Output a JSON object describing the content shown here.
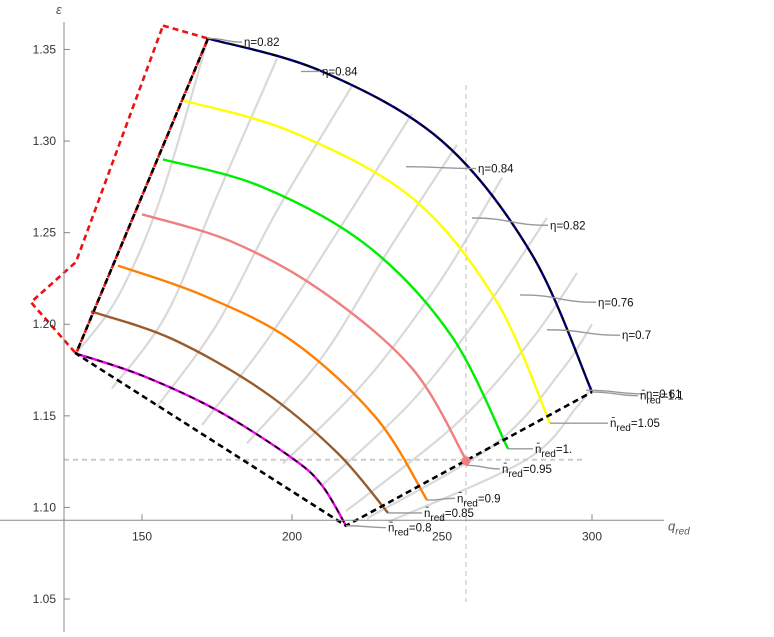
{
  "chart_data": {
    "type": "line",
    "title": "",
    "xlabel": "q_red",
    "ylabel": "ε",
    "xlim": [
      124,
      322
    ],
    "ylim": [
      1.032,
      1.377
    ],
    "grid": false,
    "x_ticks": [
      150,
      200,
      250,
      300
    ],
    "y_ticks": [
      1.05,
      1.1,
      1.15,
      1.2,
      1.25,
      1.3,
      1.35
    ],
    "x_tick_labels": [
      "150",
      "200",
      "250",
      "300"
    ],
    "y_tick_labels": [
      "1.05",
      "1.10",
      "1.15",
      "1.20",
      "1.25",
      "1.30",
      "1.35"
    ],
    "reference_lines": {
      "x": 258,
      "y": 1.126
    },
    "operating_point": {
      "x": 258,
      "y": 1.126,
      "color": "#f08080"
    },
    "speed_lines": [
      {
        "label": "n̄red=0.8",
        "color": "#ee00ee",
        "points": [
          [
            128,
            1.184
          ],
          [
            150,
            1.172
          ],
          [
            175,
            1.153
          ],
          [
            200,
            1.127
          ],
          [
            210,
            1.112
          ],
          [
            218,
            1.09
          ]
        ]
      },
      {
        "label": "n̄red=0.85",
        "color": "#9a5b2a",
        "points": [
          [
            133,
            1.207
          ],
          [
            160,
            1.192
          ],
          [
            190,
            1.164
          ],
          [
            215,
            1.13
          ],
          [
            232,
            1.097
          ]
        ]
      },
      {
        "label": "n̄red=0.9",
        "color": "#ff8000",
        "points": [
          [
            142,
            1.232
          ],
          [
            170,
            1.216
          ],
          [
            200,
            1.191
          ],
          [
            228,
            1.149
          ],
          [
            245,
            1.104
          ]
        ]
      },
      {
        "label": "n̄red=0.95",
        "color": "#f08080",
        "points": [
          [
            150,
            1.26
          ],
          [
            180,
            1.245
          ],
          [
            210,
            1.218
          ],
          [
            240,
            1.176
          ],
          [
            258,
            1.126
          ]
        ]
      },
      {
        "label": "n̄red=1.",
        "color": "#00ee00",
        "points": [
          [
            157,
            1.29
          ],
          [
            190,
            1.275
          ],
          [
            225,
            1.243
          ],
          [
            253,
            1.194
          ],
          [
            272,
            1.132
          ]
        ]
      },
      {
        "label": "n̄red=1.05",
        "color": "#ffff00",
        "points": [
          [
            164,
            1.322
          ],
          [
            200,
            1.305
          ],
          [
            240,
            1.269
          ],
          [
            268,
            1.213
          ],
          [
            286,
            1.146
          ]
        ]
      },
      {
        "label": "n̄red=1.1",
        "color": "#000080",
        "points": [
          [
            172,
            1.356
          ],
          [
            210,
            1.338
          ],
          [
            250,
            1.3
          ],
          [
            280,
            1.238
          ],
          [
            300,
            1.163
          ]
        ]
      }
    ],
    "efficiency_lines": [
      {
        "points": [
          [
            128,
            1.184
          ],
          [
            142,
            1.215
          ],
          [
            156,
            1.268
          ],
          [
            172,
            1.356
          ]
        ]
      },
      {
        "points": [
          [
            140,
            1.165
          ],
          [
            158,
            1.205
          ],
          [
            175,
            1.27
          ],
          [
            195,
            1.345
          ]
        ]
      },
      {
        "points": [
          [
            155,
            1.155
          ],
          [
            175,
            1.2
          ],
          [
            195,
            1.262
          ],
          [
            220,
            1.33
          ]
        ]
      },
      {
        "points": [
          [
            170,
            1.145
          ],
          [
            192,
            1.192
          ],
          [
            215,
            1.25
          ],
          [
            240,
            1.315
          ]
        ]
      },
      {
        "points": [
          [
            185,
            1.135
          ],
          [
            210,
            1.182
          ],
          [
            232,
            1.24
          ],
          [
            255,
            1.298
          ]
        ]
      },
      {
        "points": [
          [
            197,
            1.124
          ],
          [
            225,
            1.17
          ],
          [
            250,
            1.225
          ],
          [
            270,
            1.28
          ]
        ]
      },
      {
        "points": [
          [
            210,
            1.112
          ],
          [
            240,
            1.158
          ],
          [
            265,
            1.21
          ],
          [
            285,
            1.258
          ]
        ]
      },
      {
        "points": [
          [
            218,
            1.098
          ],
          [
            255,
            1.146
          ],
          [
            280,
            1.192
          ],
          [
            295,
            1.228
          ]
        ]
      },
      {
        "points": [
          [
            225,
            1.094
          ],
          [
            268,
            1.135
          ],
          [
            290,
            1.175
          ],
          [
            300,
            1.2
          ]
        ]
      },
      {
        "points": [
          [
            232,
            1.092
          ],
          [
            278,
            1.126
          ],
          [
            295,
            1.155
          ],
          [
            300,
            1.166
          ]
        ]
      }
    ],
    "boundaries": {
      "black_dashed": [
        [
          172,
          1.356
        ],
        [
          128,
          1.184
        ],
        [
          218,
          1.09
        ],
        [
          300,
          1.163
        ]
      ],
      "red_dashed": [
        [
          157,
          1.363
        ],
        [
          172,
          1.356
        ],
        [
          128,
          1.184
        ],
        [
          113,
          1.212
        ],
        [
          128,
          1.234
        ],
        [
          157,
          1.363
        ]
      ]
    },
    "annotations": [
      {
        "text": "η=0.82",
        "anchor": [
          172,
          1.356
        ],
        "label_at": [
          184,
          1.354
        ]
      },
      {
        "text": "η=0.84",
        "anchor": [
          203,
          1.338
        ],
        "label_at": [
          210,
          1.338
        ]
      },
      {
        "text": "η=0.84",
        "anchor": [
          238,
          1.286
        ],
        "label_at": [
          262,
          1.285
        ]
      },
      {
        "text": "η=0.82",
        "anchor": [
          260,
          1.258
        ],
        "label_at": [
          286,
          1.254
        ]
      },
      {
        "text": "η=0.76",
        "anchor": [
          276,
          1.216
        ],
        "label_at": [
          302,
          1.212
        ]
      },
      {
        "text": "η=0.7",
        "anchor": [
          285,
          1.197
        ],
        "label_at": [
          310,
          1.194
        ]
      },
      {
        "text": "η=0.61",
        "anchor": [
          298,
          1.164
        ],
        "label_at": [
          318,
          1.162
        ]
      },
      {
        "text": "n̄red=1.1",
        "anchor": [
          300,
          1.163
        ],
        "label_at": [
          316,
          1.161
        ]
      },
      {
        "text": "n̄red=1.05",
        "anchor": [
          286,
          1.146
        ],
        "label_at": [
          306,
          1.146
        ]
      },
      {
        "text": "n̄red=1.",
        "anchor": [
          272,
          1.132
        ],
        "label_at": [
          281,
          1.132
        ]
      },
      {
        "text": "n̄red=0.95",
        "anchor": [
          258,
          1.123
        ],
        "label_at": [
          270,
          1.121
        ]
      },
      {
        "text": "n̄red=0.9",
        "anchor": [
          245,
          1.104
        ],
        "label_at": [
          255,
          1.105
        ]
      },
      {
        "text": "n̄red=0.85",
        "anchor": [
          232,
          1.097
        ],
        "label_at": [
          244,
          1.097
        ]
      },
      {
        "text": "n̄red=0.8",
        "anchor": [
          218,
          1.09
        ],
        "label_at": [
          232,
          1.089
        ]
      }
    ]
  }
}
